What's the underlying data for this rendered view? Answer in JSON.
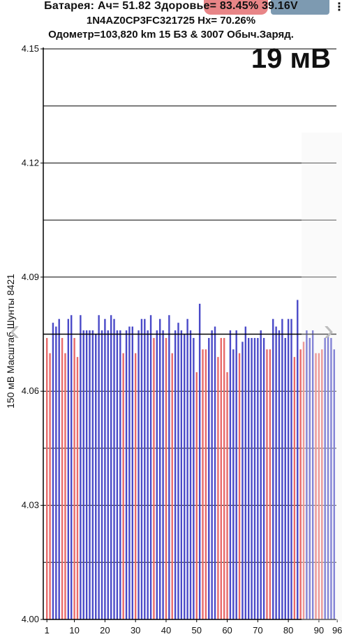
{
  "header": {
    "line1": "Батарея:  Ач= 51.82  Здоровье= 83.45%   39.16V",
    "line2": "1N4AZ0CP3FC321725   Hx= 70.26%",
    "line3": "Одометр=103,820 km 15 БЗ & 3007 Обыч.Заряд.",
    "menu_icon": "overflow-menu-icon",
    "menu_glyph": "⋮"
  },
  "delta_label": "19 мВ",
  "nav": {
    "left_icon": "chevron-left-icon",
    "right_icon": "chevron-right-icon",
    "left_glyph": "‹",
    "right_glyph": "›"
  },
  "colors": {
    "blue": "#4a4ac8",
    "red": "#e86a6a",
    "grid": "#000000",
    "avg_line": "#000000"
  },
  "chart_data": {
    "type": "bar",
    "ylabel": "150 мВ Масштаб  Шунты 8421",
    "ylim": [
      4.0,
      4.15
    ],
    "yticks": [
      4.0,
      4.03,
      4.06,
      4.09,
      4.12,
      4.15
    ],
    "ytick_labels": [
      "4.00",
      "4.03",
      "4.06",
      "4.09",
      "4.12",
      "4.15"
    ],
    "xticks": [
      1,
      10,
      20,
      30,
      40,
      50,
      60,
      70,
      80,
      90,
      96
    ],
    "grid": true,
    "average": 4.075,
    "cells": [
      {
        "v": 4.074,
        "s": "r"
      },
      {
        "v": 4.07,
        "s": "r"
      },
      {
        "v": 4.078,
        "s": "b"
      },
      {
        "v": 4.077,
        "s": "b"
      },
      {
        "v": 4.079,
        "s": "b"
      },
      {
        "v": 4.074,
        "s": "r"
      },
      {
        "v": 4.07,
        "s": "r"
      },
      {
        "v": 4.079,
        "s": "b"
      },
      {
        "v": 4.08,
        "s": "b"
      },
      {
        "v": 4.074,
        "s": "r"
      },
      {
        "v": 4.069,
        "s": "r"
      },
      {
        "v": 4.08,
        "s": "b"
      },
      {
        "v": 4.076,
        "s": "b"
      },
      {
        "v": 4.076,
        "s": "b"
      },
      {
        "v": 4.076,
        "s": "b"
      },
      {
        "v": 4.076,
        "s": "b"
      },
      {
        "v": 4.075,
        "s": "b"
      },
      {
        "v": 4.08,
        "s": "b"
      },
      {
        "v": 4.076,
        "s": "b"
      },
      {
        "v": 4.079,
        "s": "b"
      },
      {
        "v": 4.076,
        "s": "b"
      },
      {
        "v": 4.08,
        "s": "b"
      },
      {
        "v": 4.079,
        "s": "b"
      },
      {
        "v": 4.076,
        "s": "b"
      },
      {
        "v": 4.076,
        "s": "b"
      },
      {
        "v": 4.07,
        "s": "r"
      },
      {
        "v": 4.076,
        "s": "b"
      },
      {
        "v": 4.077,
        "s": "b"
      },
      {
        "v": 4.077,
        "s": "b"
      },
      {
        "v": 4.07,
        "s": "r"
      },
      {
        "v": 4.076,
        "s": "b"
      },
      {
        "v": 4.079,
        "s": "b"
      },
      {
        "v": 4.079,
        "s": "b"
      },
      {
        "v": 4.076,
        "s": "b"
      },
      {
        "v": 4.08,
        "s": "b"
      },
      {
        "v": 4.074,
        "s": "r"
      },
      {
        "v": 4.076,
        "s": "b"
      },
      {
        "v": 4.079,
        "s": "b"
      },
      {
        "v": 4.076,
        "s": "b"
      },
      {
        "v": 4.074,
        "s": "r"
      },
      {
        "v": 4.08,
        "s": "b"
      },
      {
        "v": 4.07,
        "s": "r"
      },
      {
        "v": 4.076,
        "s": "b"
      },
      {
        "v": 4.078,
        "s": "b"
      },
      {
        "v": 4.076,
        "s": "b"
      },
      {
        "v": 4.075,
        "s": "b"
      },
      {
        "v": 4.079,
        "s": "b"
      },
      {
        "v": 4.076,
        "s": "b"
      },
      {
        "v": 4.074,
        "s": "b"
      },
      {
        "v": 4.065,
        "s": "r"
      },
      {
        "v": 4.083,
        "s": "b"
      },
      {
        "v": 4.071,
        "s": "r"
      },
      {
        "v": 4.071,
        "s": "r"
      },
      {
        "v": 4.074,
        "s": "b"
      },
      {
        "v": 4.076,
        "s": "b"
      },
      {
        "v": 4.077,
        "s": "b"
      },
      {
        "v": 4.069,
        "s": "r"
      },
      {
        "v": 4.074,
        "s": "r"
      },
      {
        "v": 4.074,
        "s": "r"
      },
      {
        "v": 4.065,
        "s": "r"
      },
      {
        "v": 4.076,
        "s": "b"
      },
      {
        "v": 4.071,
        "s": "b"
      },
      {
        "v": 4.076,
        "s": "b"
      },
      {
        "v": 4.07,
        "s": "r"
      },
      {
        "v": 4.073,
        "s": "b"
      },
      {
        "v": 4.077,
        "s": "b"
      },
      {
        "v": 4.074,
        "s": "b"
      },
      {
        "v": 4.074,
        "s": "b"
      },
      {
        "v": 4.074,
        "s": "b"
      },
      {
        "v": 4.074,
        "s": "b"
      },
      {
        "v": 4.076,
        "s": "b"
      },
      {
        "v": 4.074,
        "s": "b"
      },
      {
        "v": 4.071,
        "s": "r"
      },
      {
        "v": 4.071,
        "s": "r"
      },
      {
        "v": 4.079,
        "s": "b"
      },
      {
        "v": 4.077,
        "s": "b"
      },
      {
        "v": 4.076,
        "s": "b"
      },
      {
        "v": 4.079,
        "s": "b"
      },
      {
        "v": 4.074,
        "s": "b"
      },
      {
        "v": 4.079,
        "s": "b"
      },
      {
        "v": 4.079,
        "s": "b"
      },
      {
        "v": 4.069,
        "s": "r"
      },
      {
        "v": 4.084,
        "s": "b"
      },
      {
        "v": 4.071,
        "s": "r"
      },
      {
        "v": 4.073,
        "s": "r"
      },
      {
        "v": 4.076,
        "s": "b"
      },
      {
        "v": 4.074,
        "s": "b"
      },
      {
        "v": 4.076,
        "s": "b"
      },
      {
        "v": 4.07,
        "s": "r"
      },
      {
        "v": 4.07,
        "s": "r"
      },
      {
        "v": 4.071,
        "s": "r"
      },
      {
        "v": 4.074,
        "s": "b"
      },
      {
        "v": 4.075,
        "s": "b"
      },
      {
        "v": 4.074,
        "s": "b"
      },
      {
        "v": 4.071,
        "s": "b"
      }
    ]
  }
}
